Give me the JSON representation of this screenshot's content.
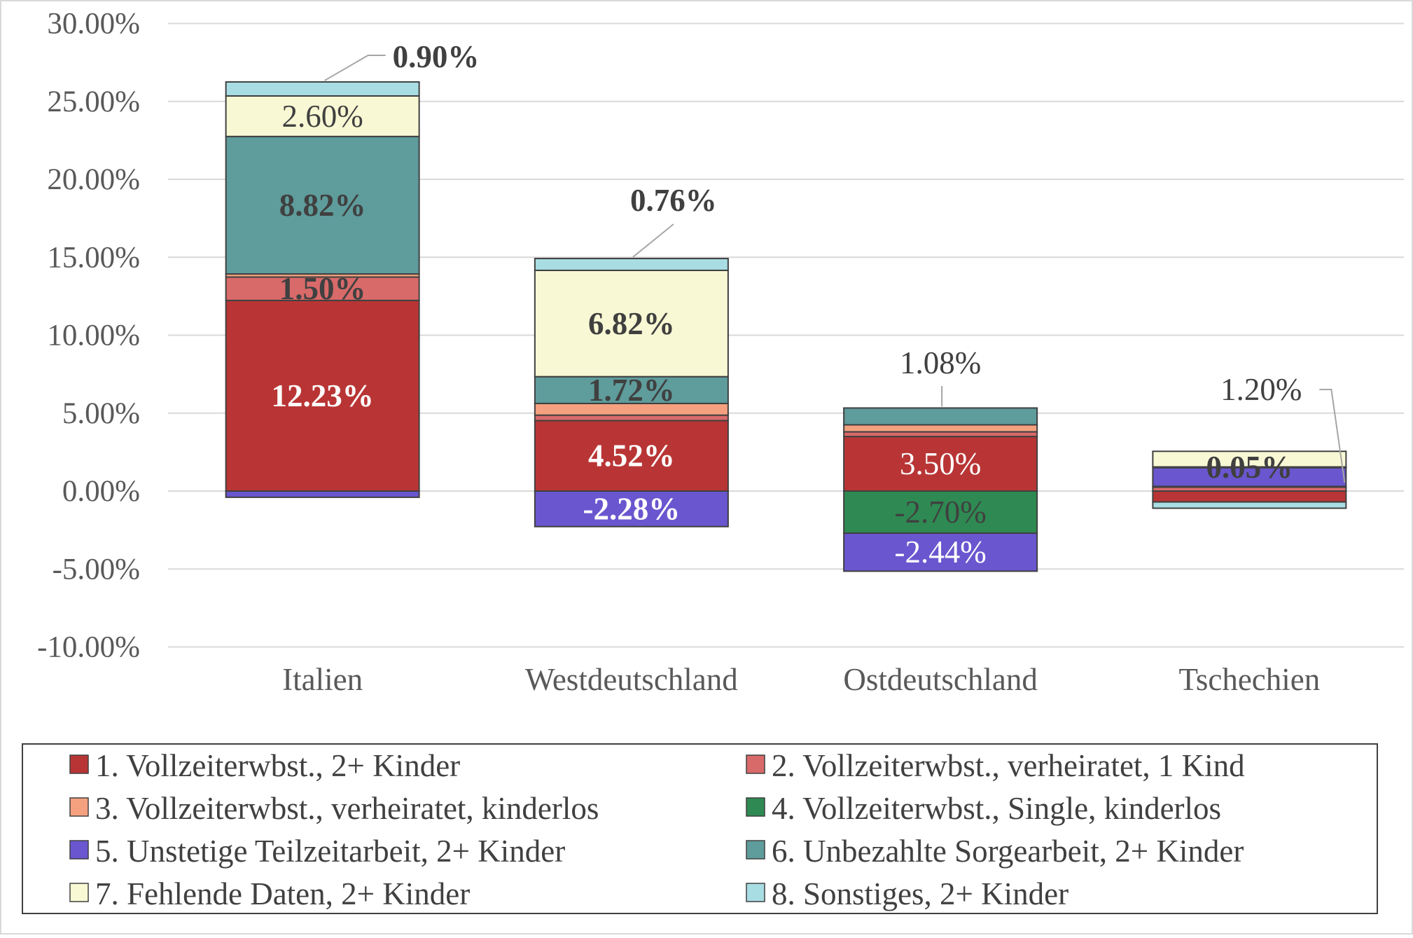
{
  "chart_data": {
    "type": "bar",
    "stacked": true,
    "categories": [
      "Italien",
      "Westdeutschland",
      "Ostdeutschland",
      "Tschechien"
    ],
    "ylim": [
      -10,
      30
    ],
    "yticks": [
      -10,
      -5,
      0,
      5,
      10,
      15,
      20,
      25,
      30
    ],
    "ytick_labels": [
      "-10.00%",
      "-5.00%",
      "0.00%",
      "5.00%",
      "10.00%",
      "15.00%",
      "20.00%",
      "25.00%",
      "30.00%"
    ],
    "grid": true,
    "legend_position": "bottom",
    "series": [
      {
        "name": "1. Vollzeiterwbst., 2+ Kinder",
        "color": "#b93535",
        "values": [
          12.23,
          4.52,
          3.5,
          -0.7
        ]
      },
      {
        "name": "2. Vollzeiterwbst., verheiratet, 1 Kind",
        "color": "#d96a6a",
        "values": [
          1.5,
          0.35,
          0.3,
          0.25
        ]
      },
      {
        "name": "3. Vollzeiterwbst., verheiratet, kinderlos",
        "color": "#f5a17f",
        "values": [
          0.2,
          0.75,
          0.45,
          0.05
        ]
      },
      {
        "name": "4. Vollzeiterwbst., Single, kinderlos",
        "color": "#2e8a52",
        "values": [
          0.0,
          0.0,
          -2.7,
          0.0
        ]
      },
      {
        "name": "5. Unstetige Teilzeitarbeit, 2+ Kinder",
        "color": "#6a56cf",
        "values": [
          -0.4,
          -2.28,
          -2.44,
          1.2
        ]
      },
      {
        "name": "6. Unbezahlte Sorgearbeit, 2+ Kinder",
        "color": "#5f9c9c",
        "values": [
          8.82,
          1.72,
          1.08,
          0.05
        ]
      },
      {
        "name": "7. Fehlende Daten, 2+ Kinder",
        "color": "#f8f8d4",
        "values": [
          2.6,
          6.82,
          0.0,
          1.0
        ]
      },
      {
        "name": "8. Sonstiges, 2+ Kinder",
        "color": "#a8dde3",
        "values": [
          0.9,
          0.76,
          0.0,
          -0.4
        ]
      }
    ],
    "annotations": [
      {
        "category": 0,
        "series": 7,
        "text": "0.90%",
        "bold": true,
        "callout": true
      },
      {
        "category": 0,
        "series": 6,
        "text": "2.60%",
        "bold": false
      },
      {
        "category": 0,
        "series": 5,
        "text": "8.82%",
        "bold": true
      },
      {
        "category": 0,
        "series": 1,
        "text": "1.50%",
        "bold": true
      },
      {
        "category": 0,
        "series": 0,
        "text": "12.23%",
        "bold": true,
        "light": true
      },
      {
        "category": 1,
        "series": 7,
        "text": "0.76%",
        "bold": true,
        "callout": true
      },
      {
        "category": 1,
        "series": 6,
        "text": "6.82%",
        "bold": true
      },
      {
        "category": 1,
        "series": 5,
        "text": "1.72%",
        "bold": true
      },
      {
        "category": 1,
        "series": 0,
        "text": "4.52%",
        "bold": true,
        "light": true
      },
      {
        "category": 1,
        "series": 4,
        "text": "-2.28%",
        "bold": true,
        "light": true
      },
      {
        "category": 2,
        "series": 5,
        "text": "1.08%",
        "bold": false,
        "callout": true
      },
      {
        "category": 2,
        "series": 0,
        "text": "3.50%",
        "bold": false,
        "light": true
      },
      {
        "category": 2,
        "series": 3,
        "text": "-2.70%",
        "bold": false
      },
      {
        "category": 2,
        "series": 4,
        "text": "-2.44%",
        "bold": false,
        "light": true
      },
      {
        "category": 3,
        "series": 4,
        "text": "1.20%",
        "bold": false,
        "callout": true
      },
      {
        "category": 3,
        "series": 5,
        "text": "0.05%",
        "bold": true
      }
    ]
  }
}
